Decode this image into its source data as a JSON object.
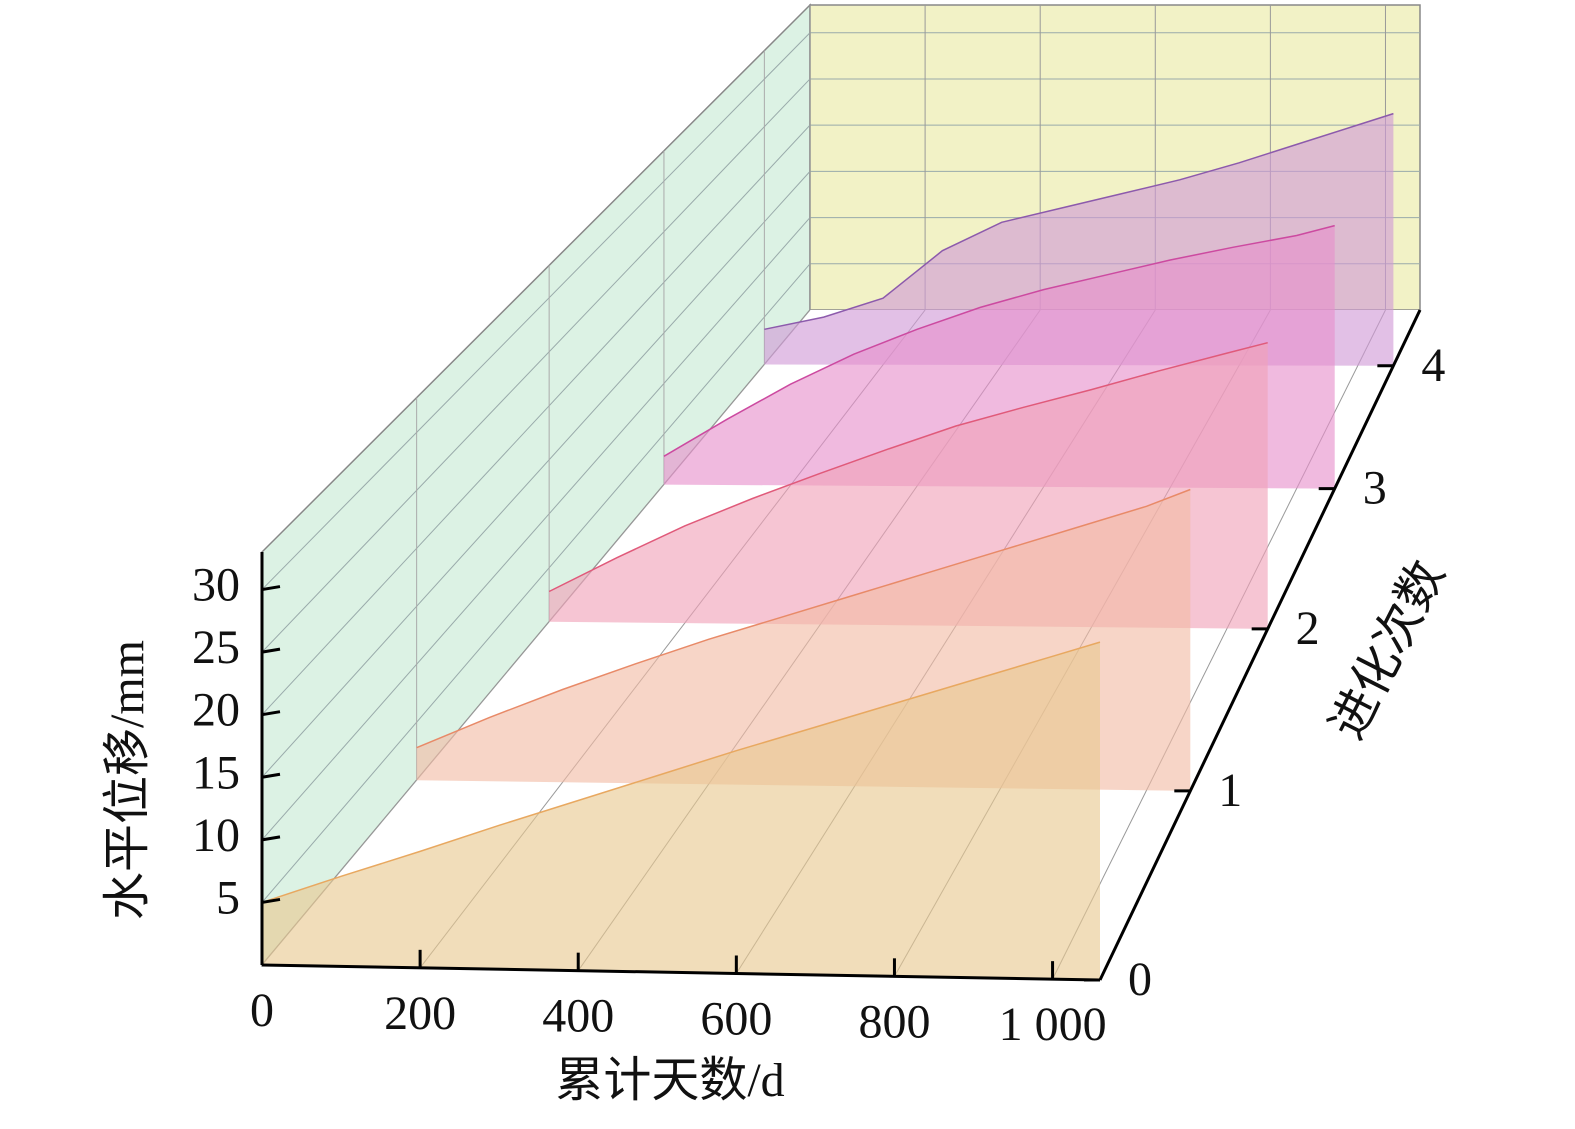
{
  "chart_data": {
    "type": "waterfall3d",
    "xlabel": "累计天数/d",
    "ylabel": "水平位移/mm",
    "zlabel": "进化次数",
    "xlim": [
      0,
      1060
    ],
    "ylim": [
      0,
      33
    ],
    "zlim": [
      0,
      4.5
    ],
    "xticks": [
      0,
      200,
      400,
      600,
      800,
      {
        "value": 1000,
        "label": "1 000"
      }
    ],
    "yticks": [
      5,
      10,
      15,
      20,
      25,
      30
    ],
    "zticks": [
      0,
      1,
      2,
      3,
      4
    ],
    "x": [
      0,
      100,
      200,
      300,
      400,
      500,
      600,
      700,
      800,
      900,
      1000,
      1060
    ],
    "series": [
      {
        "z": 0,
        "color": "#e8c890",
        "line_color": "#e8a860",
        "values": [
          5,
          7.2,
          9.3,
          11.5,
          13.6,
          15.7,
          17.8,
          19.8,
          21.8,
          23.8,
          25.8,
          27
        ]
      },
      {
        "z": 1,
        "color": "#f2bca4",
        "line_color": "#e88a68",
        "values": [
          2.8,
          5.5,
          8,
          10.3,
          12.5,
          14.5,
          16.5,
          18.5,
          20.5,
          22.5,
          24.5,
          26
        ]
      },
      {
        "z": 2,
        "color": "#f0a2b8",
        "line_color": "#e05a7a",
        "values": [
          2.8,
          6,
          9,
          11.6,
          14,
          16.3,
          18.5,
          20.3,
          22,
          23.8,
          25.5,
          26.5
        ]
      },
      {
        "z": 3,
        "color": "#e690cc",
        "line_color": "#cc4aa0",
        "values": [
          2.8,
          6.5,
          10,
          13,
          15.5,
          17.7,
          19.5,
          21,
          22.5,
          23.8,
          25,
          26
        ]
      },
      {
        "z": 4,
        "color": "#d09ad6",
        "line_color": "#8c5aac",
        "values": [
          3.7,
          5,
          7,
          12,
          15,
          16.5,
          18,
          19.5,
          21.3,
          23.3,
          25.3,
          26.5
        ]
      }
    ],
    "left_wall_color": "#dcf2e4",
    "back_wall_color": "#f2f2c6",
    "grid": true
  }
}
